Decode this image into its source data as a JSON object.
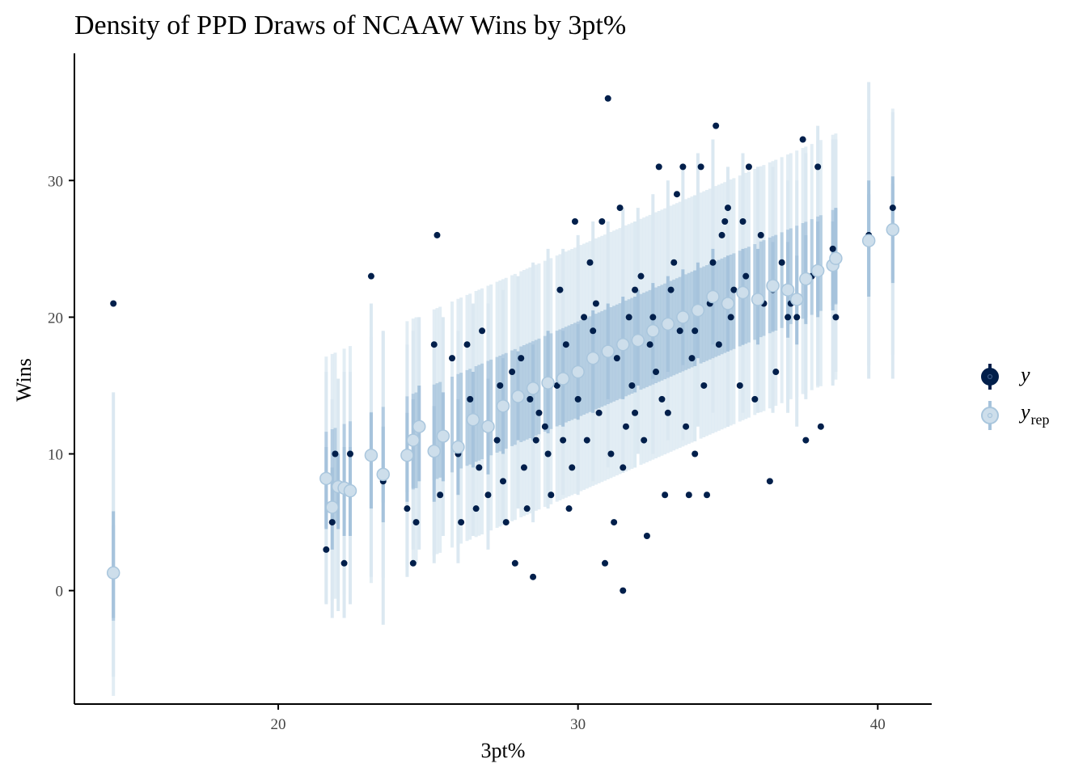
{
  "chart_data": {
    "type": "scatter",
    "title": "Density of PPD Draws of NCAAW Wins by 3pt%",
    "xlabel": "3pt%",
    "ylabel": "Wins",
    "xlim": [
      13.2,
      41.8
    ],
    "ylim": [
      -8.3,
      39.3
    ],
    "x_ticks": [
      20,
      30,
      40
    ],
    "y_ticks": [
      0,
      10,
      20,
      30
    ],
    "grid": false,
    "legend_position": "right",
    "colors": {
      "observed": "#011f4b",
      "predicted_point": "#cddeeb",
      "predicted_edge": "#a9c6dd",
      "inner_interval": "#a6c3dc",
      "outer_interval": "#dbe8f1"
    },
    "legend": [
      {
        "key": "y",
        "label": "y",
        "subscript": ""
      },
      {
        "key": "yrep",
        "label": "y",
        "subscript": "rep"
      }
    ],
    "series": [
      {
        "name": "y",
        "points": [
          [
            14.5,
            21
          ],
          [
            21.6,
            3
          ],
          [
            21.8,
            5
          ],
          [
            21.9,
            10
          ],
          [
            22.2,
            2
          ],
          [
            22.4,
            10
          ],
          [
            23.1,
            23
          ],
          [
            23.5,
            8
          ],
          [
            24.3,
            6
          ],
          [
            24.5,
            2
          ],
          [
            24.6,
            5
          ],
          [
            25.2,
            18
          ],
          [
            25.3,
            26
          ],
          [
            25.4,
            7
          ],
          [
            25.8,
            17
          ],
          [
            26.1,
            5
          ],
          [
            26.3,
            18
          ],
          [
            26.6,
            6
          ],
          [
            26.8,
            19
          ],
          [
            27.0,
            7
          ],
          [
            27.3,
            11
          ],
          [
            27.6,
            5
          ],
          [
            27.9,
            2
          ],
          [
            28.1,
            17
          ],
          [
            28.3,
            6
          ],
          [
            28.5,
            1
          ],
          [
            28.7,
            13
          ],
          [
            29.1,
            7
          ],
          [
            29.3,
            15
          ],
          [
            29.5,
            11
          ],
          [
            29.7,
            6
          ],
          [
            29.9,
            27
          ],
          [
            30.2,
            20
          ],
          [
            30.4,
            24
          ],
          [
            30.6,
            21
          ],
          [
            30.8,
            27
          ],
          [
            30.9,
            2
          ],
          [
            31.0,
            36
          ],
          [
            31.2,
            5
          ],
          [
            31.4,
            28
          ],
          [
            31.5,
            0
          ],
          [
            31.7,
            20
          ],
          [
            31.9,
            13
          ],
          [
            32.1,
            23
          ],
          [
            32.3,
            4
          ],
          [
            32.5,
            20
          ],
          [
            32.7,
            31
          ],
          [
            32.9,
            7
          ],
          [
            33.1,
            22
          ],
          [
            33.3,
            29
          ],
          [
            33.5,
            31
          ],
          [
            33.7,
            7
          ],
          [
            33.9,
            19
          ],
          [
            34.1,
            31
          ],
          [
            34.3,
            7
          ],
          [
            34.5,
            24
          ],
          [
            34.6,
            34
          ],
          [
            34.8,
            26
          ],
          [
            35.0,
            28
          ],
          [
            35.2,
            22
          ],
          [
            35.4,
            15
          ],
          [
            35.7,
            31
          ],
          [
            35.9,
            14
          ],
          [
            36.1,
            26
          ],
          [
            36.4,
            8
          ],
          [
            36.6,
            16
          ],
          [
            36.8,
            24
          ],
          [
            37.1,
            21
          ],
          [
            37.3,
            20
          ],
          [
            37.6,
            11
          ],
          [
            37.5,
            33
          ],
          [
            38.0,
            31
          ],
          [
            38.1,
            12
          ],
          [
            38.5,
            25
          ],
          [
            38.6,
            20
          ],
          [
            39.7,
            26
          ],
          [
            40.5,
            28
          ],
          [
            26.4,
            14
          ],
          [
            27.1,
            12
          ],
          [
            27.8,
            16
          ],
          [
            28.4,
            14
          ],
          [
            28.9,
            12
          ],
          [
            29.6,
            18
          ],
          [
            30.1,
            16
          ],
          [
            30.7,
            13
          ],
          [
            31.3,
            17
          ],
          [
            31.8,
            15
          ],
          [
            32.4,
            18
          ],
          [
            32.8,
            14
          ],
          [
            33.4,
            19
          ],
          [
            33.8,
            17
          ],
          [
            34.4,
            21
          ],
          [
            35.1,
            20
          ],
          [
            35.6,
            23
          ],
          [
            36.2,
            21
          ],
          [
            26.0,
            10
          ],
          [
            26.7,
            9
          ],
          [
            27.5,
            8
          ],
          [
            28.2,
            9
          ],
          [
            29.0,
            10
          ],
          [
            29.8,
            9
          ],
          [
            30.3,
            11
          ],
          [
            31.1,
            10
          ],
          [
            31.6,
            12
          ],
          [
            32.2,
            11
          ],
          [
            33.0,
            13
          ],
          [
            33.6,
            12
          ],
          [
            34.2,
            15
          ],
          [
            27.4,
            15
          ],
          [
            28.6,
            11
          ],
          [
            30.5,
            19
          ],
          [
            31.9,
            22
          ],
          [
            33.2,
            24
          ],
          [
            34.9,
            27
          ],
          [
            35.5,
            27
          ],
          [
            36.5,
            22
          ],
          [
            37.0,
            20
          ],
          [
            37.8,
            23
          ],
          [
            29.4,
            22
          ],
          [
            30.0,
            14
          ],
          [
            31.5,
            9
          ],
          [
            32.6,
            16
          ],
          [
            33.9,
            10
          ],
          [
            34.7,
            18
          ]
        ]
      },
      {
        "name": "yrep",
        "points": [
          [
            14.5,
            1.3,
            -2,
            5.8,
            -6.3,
            14.5
          ],
          [
            21.6,
            8.2,
            4.5,
            10.5,
            -1,
            16
          ],
          [
            21.8,
            6.1,
            3,
            9,
            -2,
            14
          ],
          [
            22.0,
            7.6,
            4.5,
            10,
            -1.5,
            15.5
          ],
          [
            22.2,
            7.5,
            4,
            10.5,
            -2,
            16
          ],
          [
            22.4,
            7.3,
            4,
            10.5,
            -1,
            16
          ],
          [
            23.1,
            9.9,
            6,
            13,
            1,
            21
          ],
          [
            23.5,
            8.5,
            5,
            12,
            -2.5,
            19
          ],
          [
            24.3,
            9.9,
            6.5,
            13,
            1,
            18
          ],
          [
            24.5,
            11,
            7.5,
            14,
            3,
            19
          ],
          [
            24.7,
            12,
            8,
            15,
            3,
            20
          ],
          [
            25.2,
            10.2,
            6.5,
            13.5,
            2,
            18
          ],
          [
            25.5,
            11.3,
            8,
            14.5,
            4,
            20
          ],
          [
            26.0,
            10.5,
            7,
            14,
            2,
            19
          ],
          [
            26.5,
            12.5,
            9,
            16,
            4,
            21
          ],
          [
            27.0,
            12.0,
            8.5,
            15.5,
            3,
            21
          ],
          [
            27.5,
            13.5,
            10,
            17,
            5,
            22
          ],
          [
            28.0,
            14.2,
            11,
            17.5,
            6,
            23
          ],
          [
            28.5,
            14.8,
            11,
            18,
            5,
            24
          ],
          [
            29.0,
            15.2,
            11.5,
            19,
            6,
            25
          ],
          [
            29.5,
            15.5,
            12,
            19,
            7,
            25
          ],
          [
            30.0,
            16.0,
            12.5,
            19.5,
            7,
            26
          ],
          [
            30.5,
            17.0,
            13,
            20.5,
            8,
            27
          ],
          [
            31.0,
            17.5,
            14,
            21,
            9,
            27
          ],
          [
            31.5,
            18.0,
            14,
            21.5,
            9,
            28
          ],
          [
            32.0,
            18.3,
            15,
            22,
            10,
            28
          ],
          [
            32.5,
            19.0,
            15.5,
            22.5,
            10,
            29
          ],
          [
            33.0,
            19.5,
            16,
            23,
            11,
            30
          ],
          [
            33.5,
            20.0,
            16.5,
            23.5,
            11,
            31
          ],
          [
            34.0,
            20.5,
            17,
            24,
            12,
            32
          ],
          [
            34.5,
            21.5,
            18,
            25,
            13,
            33
          ],
          [
            35.0,
            21.0,
            17.5,
            24.5,
            12,
            31
          ],
          [
            35.5,
            21.8,
            18,
            25,
            13,
            32
          ],
          [
            36.0,
            21.3,
            18,
            25,
            13,
            31
          ],
          [
            36.5,
            22.3,
            19,
            25.5,
            13,
            31
          ],
          [
            37.0,
            22.0,
            18.5,
            25.5,
            13,
            30
          ],
          [
            37.3,
            21.3,
            18,
            24.5,
            12,
            30
          ],
          [
            37.6,
            22.8,
            19.5,
            26,
            14,
            32
          ],
          [
            38.0,
            23.4,
            20,
            27,
            15,
            34
          ],
          [
            38.5,
            23.8,
            20.5,
            27,
            15,
            33
          ],
          [
            38.6,
            24.3,
            21,
            28,
            16,
            33
          ],
          [
            39.7,
            25.6,
            21.5,
            30,
            15.5,
            37.2
          ],
          [
            40.5,
            26.4,
            22.5,
            30.3,
            15.5,
            35
          ]
        ]
      }
    ]
  }
}
